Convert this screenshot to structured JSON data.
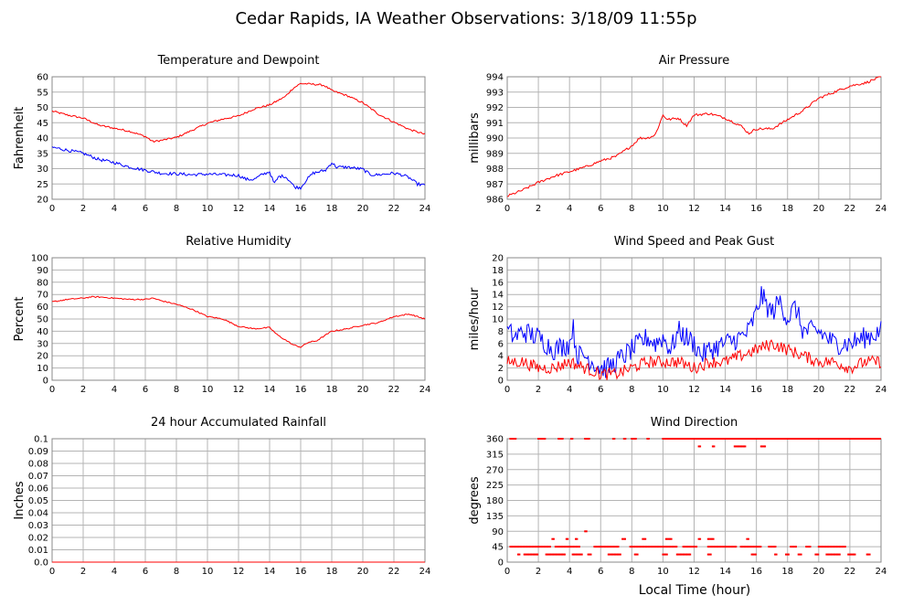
{
  "title": "Cedar Rapids, IA Weather Observations: 3/18/09 11:55p",
  "xaxis_label": "Local Time (hour)",
  "colors": {
    "red": "#ff0000",
    "blue": "#0000ff",
    "grid": "#b4b4b4",
    "frame": "#888888"
  },
  "chart_data": [
    {
      "id": "temp",
      "type": "line",
      "title": "Temperature and Dewpoint",
      "ylabel": "Fahrenheit",
      "xlim": [
        0,
        24
      ],
      "ylim": [
        20,
        60
      ],
      "yticks": [
        20,
        25,
        30,
        35,
        40,
        45,
        50,
        55,
        60
      ],
      "ytick_labels": [
        "20",
        "25",
        "30",
        "35",
        "40",
        "45",
        "50",
        "55",
        "60"
      ],
      "xticks": [
        0,
        2,
        4,
        6,
        8,
        10,
        12,
        14,
        16,
        18,
        20,
        22,
        24
      ],
      "series": [
        {
          "color": "#ff0000",
          "noise": 0.3,
          "x": [
            0,
            1,
            2,
            3,
            4,
            5,
            6,
            6.5,
            7,
            8,
            9,
            10,
            11,
            12,
            13,
            14,
            15,
            15.5,
            16,
            17,
            17.5,
            18,
            19,
            20,
            21,
            22,
            23,
            24
          ],
          "y": [
            48.8,
            47.5,
            46.5,
            44.2,
            43.2,
            42.2,
            40.5,
            38.8,
            39.2,
            40.2,
            42.5,
            44.8,
            46.2,
            47.2,
            49.5,
            50.8,
            53.5,
            56.2,
            57.8,
            57.5,
            57.2,
            55.5,
            53.8,
            51.5,
            47.8,
            45.2,
            42.8,
            41.2
          ]
        },
        {
          "color": "#0000ff",
          "noise": 0.5,
          "x": [
            0,
            1,
            2,
            3,
            4,
            5,
            6,
            7,
            8,
            9,
            10,
            11,
            12,
            12.5,
            13,
            13.5,
            14,
            14.3,
            14.6,
            15,
            15.3,
            15.6,
            16,
            16.4,
            16.8,
            17.2,
            17.6,
            18,
            18.3,
            19,
            20,
            20.5,
            21,
            22,
            22.5,
            23,
            23.5,
            24
          ],
          "y": [
            37,
            36,
            35,
            33,
            32,
            30.5,
            29.5,
            28.5,
            28.3,
            28,
            28.2,
            28,
            27.8,
            26.5,
            26.5,
            28,
            29,
            25,
            27.5,
            27.5,
            26,
            24,
            23.8,
            26.5,
            28.5,
            29,
            29.5,
            32,
            30.5,
            30.5,
            29.8,
            28,
            28,
            28.5,
            28,
            27,
            25,
            24.5
          ]
        }
      ]
    },
    {
      "id": "pres",
      "type": "line",
      "title": "Air Pressure",
      "ylabel": "millibars",
      "xlim": [
        0,
        24
      ],
      "ylim": [
        986,
        994
      ],
      "yticks": [
        986,
        987,
        988,
        989,
        990,
        991,
        992,
        993,
        994
      ],
      "ytick_labels": [
        "986",
        "987",
        "988",
        "989",
        "990",
        "991",
        "992",
        "993",
        "994"
      ],
      "xticks": [
        0,
        2,
        4,
        6,
        8,
        10,
        12,
        14,
        16,
        18,
        20,
        22,
        24
      ],
      "series": [
        {
          "color": "#ff0000",
          "noise": 0.08,
          "x": [
            0,
            1,
            2,
            3,
            4,
            5,
            6,
            7,
            8,
            8.5,
            9,
            9.5,
            10,
            10.3,
            11,
            11.5,
            12,
            13,
            14,
            15,
            15.5,
            16,
            17,
            18,
            19,
            20,
            21,
            22,
            23,
            24
          ],
          "y": [
            986.2,
            986.6,
            987.1,
            987.5,
            987.8,
            988.1,
            988.5,
            988.8,
            989.5,
            990,
            990,
            990.2,
            991.5,
            991.2,
            991.3,
            990.8,
            991.5,
            991.6,
            991.3,
            990.8,
            990.3,
            990.6,
            990.6,
            991.2,
            991.8,
            992.6,
            993,
            993.4,
            993.6,
            994
          ]
        }
      ]
    },
    {
      "id": "rh",
      "type": "line",
      "title": "Relative Humidity",
      "ylabel": "Percent",
      "xlim": [
        0,
        24
      ],
      "ylim": [
        0,
        100
      ],
      "yticks": [
        0,
        10,
        20,
        30,
        40,
        50,
        60,
        70,
        80,
        90,
        100
      ],
      "ytick_labels": [
        "0",
        "10",
        "20",
        "30",
        "40",
        "50",
        "60",
        "70",
        "80",
        "90",
        "100"
      ],
      "xticks": [
        0,
        2,
        4,
        6,
        8,
        10,
        12,
        14,
        16,
        18,
        20,
        22,
        24
      ],
      "series": [
        {
          "color": "#ff0000",
          "noise": 0.5,
          "x": [
            0,
            1,
            2,
            2.5,
            3,
            4,
            5,
            6,
            6.5,
            7,
            8,
            9,
            10,
            11,
            12,
            13,
            14,
            14.5,
            15,
            15.5,
            16,
            16.5,
            17,
            18,
            19,
            20,
            21,
            22,
            23,
            24
          ],
          "y": [
            64,
            66,
            67,
            68,
            68,
            67,
            66,
            66,
            67,
            65,
            62,
            58,
            52,
            50,
            44,
            42,
            43,
            37,
            33,
            29,
            27,
            31,
            32,
            40,
            42,
            45,
            47,
            52,
            54,
            50
          ]
        }
      ]
    },
    {
      "id": "wind",
      "type": "line",
      "title": "Wind Speed and Peak Gust",
      "ylabel": "miles/hour",
      "xlim": [
        0,
        24
      ],
      "ylim": [
        0,
        20
      ],
      "yticks": [
        0,
        2,
        4,
        6,
        8,
        10,
        12,
        14,
        16,
        18,
        20
      ],
      "ytick_labels": [
        "0",
        "2",
        "4",
        "6",
        "8",
        "10",
        "12",
        "14",
        "16",
        "18",
        "20"
      ],
      "xticks": [
        0,
        2,
        4,
        6,
        8,
        10,
        12,
        14,
        16,
        18,
        20,
        22,
        24
      ],
      "series": [
        {
          "color": "#0000ff",
          "noise": 1.8,
          "x": [
            0,
            0.5,
            1,
            2,
            3,
            4,
            4.2,
            4.5,
            5,
            5.5,
            6,
            6.5,
            7,
            7.5,
            8,
            8.5,
            9,
            9.5,
            10,
            10.5,
            11,
            12,
            12.5,
            13,
            14,
            15,
            15.5,
            16,
            16.3,
            16.7,
            17,
            17.5,
            18,
            18.5,
            19,
            20,
            21,
            22,
            23,
            24
          ],
          "y": [
            8,
            7,
            8,
            7,
            5,
            6,
            9,
            4,
            4,
            3,
            2,
            2,
            3,
            4,
            5,
            6,
            7,
            6,
            7,
            5,
            8,
            6,
            4,
            5,
            6,
            7,
            8,
            11,
            14,
            12,
            11,
            13,
            10,
            12,
            8,
            8,
            6,
            6,
            7,
            8
          ]
        },
        {
          "color": "#ff0000",
          "noise": 1.0,
          "x": [
            0,
            1,
            2,
            3,
            4,
            5,
            6,
            6.5,
            7,
            8,
            9,
            10,
            11,
            12,
            13,
            14,
            15,
            16,
            17,
            18,
            19,
            20,
            21,
            22,
            23,
            24
          ],
          "y": [
            3,
            3,
            2,
            2,
            3,
            2,
            1,
            1,
            1,
            2,
            3,
            3,
            3,
            2,
            3,
            3,
            4,
            5,
            6,
            5,
            4,
            3,
            3,
            2,
            3,
            3
          ]
        }
      ]
    },
    {
      "id": "rain",
      "type": "line",
      "title": "24 hour Accumulated Rainfall",
      "ylabel": "Inches",
      "xlim": [
        0,
        24
      ],
      "ylim": [
        0,
        0.1
      ],
      "yticks": [
        0,
        0.01,
        0.02,
        0.03,
        0.04,
        0.05,
        0.06,
        0.07,
        0.08,
        0.09,
        0.1
      ],
      "ytick_labels": [
        "0.0",
        "0.01",
        "0.02",
        "0.03",
        "0.04",
        "0.05",
        "0.06",
        "0.07",
        "0.08",
        "0.09",
        "0.1"
      ],
      "xticks": [
        0,
        2,
        4,
        6,
        8,
        10,
        12,
        14,
        16,
        18,
        20,
        22,
        24
      ],
      "series": [
        {
          "color": "#ff0000",
          "noise": 0,
          "x": [
            0,
            24
          ],
          "y": [
            0,
            0
          ]
        }
      ]
    },
    {
      "id": "dir",
      "type": "scatter",
      "title": "Wind Direction",
      "ylabel": "degrees",
      "xlabel": "Local Time (hour)",
      "xlim": [
        0,
        24
      ],
      "ylim": [
        0,
        360
      ],
      "yticks": [
        0,
        45,
        90,
        135,
        180,
        225,
        270,
        315,
        360
      ],
      "ytick_labels": [
        "0",
        "45",
        "90",
        "135",
        "180",
        "225",
        "270",
        "315",
        "360"
      ],
      "xticks": [
        0,
        2,
        4,
        6,
        8,
        10,
        12,
        14,
        16,
        18,
        20,
        22,
        24
      ],
      "levels": [
        {
          "value": 360,
          "ranges": [
            [
              0.2,
              0.6
            ],
            [
              2.0,
              2.5
            ],
            [
              3.3,
              3.6
            ],
            [
              4.1,
              4.2
            ],
            [
              5.0,
              5.3
            ],
            [
              6.8,
              6.9
            ],
            [
              7.5,
              7.6
            ],
            [
              8.0,
              8.3
            ],
            [
              9.0,
              9.1
            ],
            [
              10.0,
              24.0
            ]
          ]
        },
        {
          "value": 337.5,
          "ranges": [
            [
              12.3,
              12.4
            ],
            [
              13.2,
              13.3
            ],
            [
              14.6,
              15.3
            ],
            [
              16.3,
              16.6
            ]
          ]
        },
        {
          "value": 90,
          "ranges": [
            [
              5.0,
              5.1
            ]
          ]
        },
        {
          "value": 67.5,
          "ranges": [
            [
              2.9,
              3.0
            ],
            [
              3.8,
              3.9
            ],
            [
              4.4,
              4.5
            ],
            [
              7.4,
              7.6
            ],
            [
              8.7,
              8.9
            ],
            [
              10.2,
              10.6
            ],
            [
              12.3,
              12.4
            ],
            [
              12.9,
              13.3
            ],
            [
              15.4,
              15.5
            ]
          ]
        },
        {
          "value": 45,
          "ranges": [
            [
              0.2,
              2.8
            ],
            [
              3.1,
              4.7
            ],
            [
              5.6,
              7.2
            ],
            [
              7.9,
              10.9
            ],
            [
              11.3,
              12.2
            ],
            [
              12.9,
              14.7
            ],
            [
              15.0,
              16.3
            ],
            [
              16.8,
              17.3
            ],
            [
              18.2,
              18.6
            ],
            [
              19.2,
              19.5
            ],
            [
              20.0,
              21.7
            ]
          ]
        },
        {
          "value": 22.5,
          "ranges": [
            [
              0.7,
              0.8
            ],
            [
              1.1,
              2.0
            ],
            [
              2.5,
              3.7
            ],
            [
              4.2,
              4.8
            ],
            [
              5.2,
              5.4
            ],
            [
              6.5,
              7.3
            ],
            [
              8.2,
              8.4
            ],
            [
              10.0,
              10.3
            ],
            [
              10.9,
              11.8
            ],
            [
              12.9,
              13.1
            ],
            [
              15.7,
              16.0
            ],
            [
              17.2,
              17.3
            ],
            [
              17.9,
              18.1
            ],
            [
              18.7,
              18.9
            ],
            [
              19.8,
              20.0
            ],
            [
              20.5,
              21.4
            ],
            [
              21.9,
              22.4
            ],
            [
              23.1,
              23.3
            ]
          ]
        }
      ]
    }
  ]
}
